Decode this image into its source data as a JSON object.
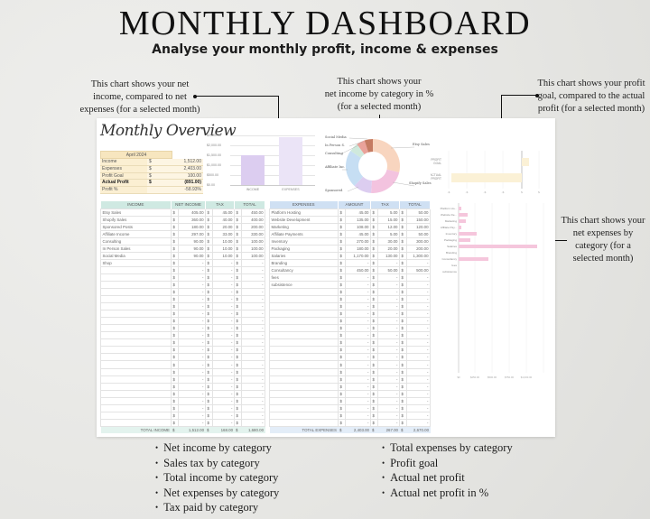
{
  "header": {
    "title": "MONTHLY DASHBOARD",
    "subtitle": "Analyse your monthly profit, income & expenses"
  },
  "callouts": {
    "income_vs_expenses": [
      "This chart shows your net",
      "income, compared to net",
      "expenses (for a selected month)"
    ],
    "income_by_category": [
      "This chart shows your",
      "net income by category in %",
      "(for a selected month)"
    ],
    "profit_goal": [
      "This chart shows your profit",
      "goal, compared to the actual",
      "profit (for a selected month)"
    ],
    "expenses_by_category": [
      "This chart shows your",
      "net expenses by",
      "category (for a",
      "selected month)"
    ]
  },
  "overview": {
    "title": "Monthly Overview",
    "month": "April 2024",
    "rows": [
      {
        "label": "Income",
        "currency": "$",
        "value": "1,512.00"
      },
      {
        "label": "Expenses",
        "currency": "$",
        "value": "2,403.00"
      },
      {
        "label": "Profit Goal",
        "currency": "$",
        "value": "100.00"
      },
      {
        "label": "Actual Profit",
        "currency": "$",
        "value": "(891.00)"
      },
      {
        "label": "Profit %",
        "currency": "",
        "value": "-58.93%"
      }
    ]
  },
  "income_table": {
    "headers": [
      "INCOME",
      "NET INCOME",
      "TAX",
      "TOTAL"
    ],
    "rows": [
      [
        "Etsy Sales",
        "405.00",
        "45.00",
        "450.00"
      ],
      [
        "Shopify Sales",
        "360.00",
        "40.00",
        "400.00"
      ],
      [
        "Sponsored Posts",
        "180.00",
        "20.00",
        "200.00"
      ],
      [
        "Affiliate Income",
        "297.00",
        "33.00",
        "330.00"
      ],
      [
        "Consulting",
        "90.00",
        "10.00",
        "100.00"
      ],
      [
        "In Person Sales",
        "90.00",
        "10.00",
        "100.00"
      ],
      [
        "Social Media",
        "90.00",
        "10.00",
        "100.00"
      ],
      [
        "Shop",
        "-",
        "-",
        "-"
      ]
    ],
    "empty_rows": 22,
    "total_label": "TOTAL INCOME",
    "totals": [
      "1,512.00",
      "168.00",
      "1,680.00"
    ]
  },
  "expenses_table": {
    "headers": [
      "EXPENSES",
      "AMOUNT",
      "TAX",
      "TOTAL"
    ],
    "rows": [
      [
        "Platform Hosting",
        "45.00",
        "5.00",
        "50.00"
      ],
      [
        "Website Development",
        "135.00",
        "15.00",
        "150.00"
      ],
      [
        "Marketing",
        "108.00",
        "12.00",
        "120.00"
      ],
      [
        "Affiliate Payments",
        "45.00",
        "5.00",
        "50.00"
      ],
      [
        "Inventory",
        "270.00",
        "30.00",
        "300.00"
      ],
      [
        "Packaging",
        "180.00",
        "20.00",
        "200.00"
      ],
      [
        "Salaries",
        "1,170.00",
        "130.00",
        "1,300.00"
      ],
      [
        "Branding",
        "-",
        "-",
        "-"
      ],
      [
        "Consultancy",
        "450.00",
        "50.00",
        "500.00"
      ],
      [
        "fees",
        "-",
        "-",
        "-"
      ],
      [
        "subsistence",
        "-",
        "-",
        "-"
      ]
    ],
    "empty_rows": 19,
    "total_label": "TOTAL EXPENSES",
    "totals": [
      "2,403.00",
      "267.00",
      "2,670.00"
    ]
  },
  "currency_symbol": "$",
  "features_left": [
    "Net income by category",
    "Sales tax by category",
    "Total income by category",
    "Net expenses by category",
    "Tax paid by category"
  ],
  "features_right": [
    "Total expenses by category",
    "Profit goal",
    "Actual net profit",
    "Actual net profit in %"
  ],
  "colors": {
    "income_bar": "#dccdf0",
    "expenses_bar": "#ebe4f7",
    "overview_fill": "#fbefd2",
    "income_header": "#cfe9e2",
    "expenses_header": "#cfe0f3",
    "goal_bar": "#fbf1d6",
    "expense_hbar": "#f5c6dc"
  },
  "chart_data": [
    {
      "type": "bar",
      "title": "Income vs Expenses",
      "categories": [
        "INCOME",
        "EXPENSES"
      ],
      "values": [
        1512,
        2403
      ],
      "yticks": [
        "$0.00",
        "$500.00",
        "$1,000.00",
        "$1,500.00",
        "$2,000.00",
        "$2,500.00"
      ],
      "ylim": [
        0,
        2500
      ]
    },
    {
      "type": "pie",
      "title": "Net income by category (%)",
      "categories": [
        "Etsy Sales",
        "Shopify Sales",
        "Sponsored",
        "Affiliate Inc.",
        "Consulting",
        "In Person S.",
        "Social Media"
      ],
      "values": [
        26.8,
        23.8,
        11.9,
        19.6,
        6.0,
        6.0,
        6.0
      ],
      "colors": [
        "#f8d5bf",
        "#f3c3df",
        "#dccdf0",
        "#c6def3",
        "#cfe9dc",
        "#eaa29a",
        "#c57b62"
      ]
    },
    {
      "type": "bar",
      "orientation": "horizontal",
      "title": "Profit goal vs actual profit",
      "categories": [
        "PROFIT GOAL",
        "ACTUAL PROFIT"
      ],
      "values": [
        100,
        -891
      ]
    },
    {
      "type": "bar",
      "orientation": "horizontal",
      "title": "Net expenses by category",
      "categories": [
        "Platform Ho...",
        "Website De...",
        "Marketing",
        "Affiliate Pay...",
        "Inventory",
        "Packaging",
        "Salaries",
        "Branding",
        "Consultancy",
        "fees",
        "subsistence"
      ],
      "values": [
        45,
        135,
        108,
        45,
        270,
        180,
        1170,
        0,
        450,
        0,
        0
      ],
      "xticks": [
        "$0",
        "$250.00",
        "$500.00",
        "$750.00",
        "$1,000.00"
      ],
      "xlim": [
        0,
        1250
      ]
    }
  ]
}
